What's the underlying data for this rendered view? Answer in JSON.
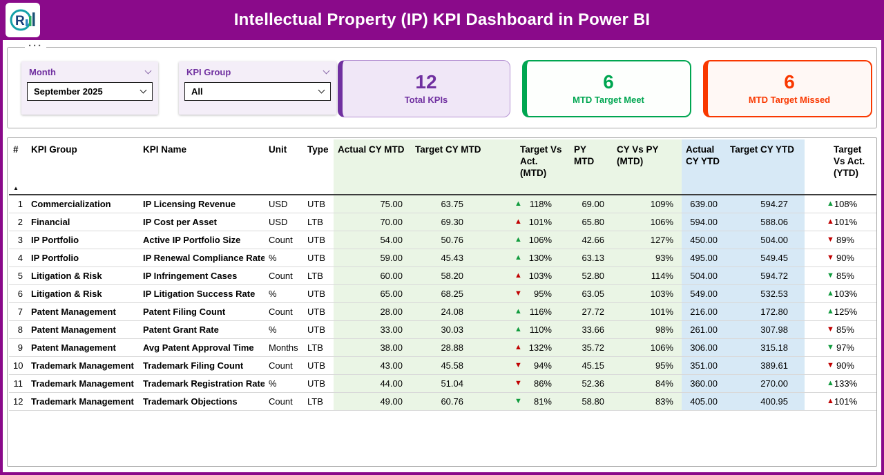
{
  "colors": {
    "header_purple": "#8a0a8a",
    "accent_purple": "#7030a0",
    "green": "#00a651",
    "red": "#f93800",
    "triangle_green": "#109b3d",
    "triangle_red": "#c00000",
    "mtd_col_bg": "#eaf5e5",
    "ytd_col_bg": "#d7e9f6",
    "card_purple_bg": "#f0e7f7",
    "slicer_bg": "#f4eef8"
  },
  "icons": {
    "more_options": "···",
    "sort_ascending": "▲",
    "triangle_up": "▲",
    "triangle_down": "▼"
  },
  "header": {
    "title": "Intellectual Property (IP) KPI Dashboard in Power BI",
    "logo_letter": "R"
  },
  "filters": {
    "month": {
      "label": "Month",
      "value": "September 2025"
    },
    "kpi_group": {
      "label": "KPI Group",
      "value": "All"
    }
  },
  "cards": [
    {
      "value": "12",
      "label": "Total KPIs"
    },
    {
      "value": "6",
      "label": "MTD Target Meet"
    },
    {
      "value": "6",
      "label": "MTD Target Missed"
    }
  ],
  "table": {
    "columns": [
      "#",
      "KPI Group",
      "KPI Name",
      "Unit",
      "Type",
      "Actual CY MTD",
      "Target CY MTD",
      "Target Vs Act. (MTD)",
      "PY MTD",
      "CY Vs PY (MTD)",
      "Actual CY YTD",
      "Target CY YTD",
      "Target Vs Act. (YTD)"
    ],
    "rows": [
      {
        "num": "1",
        "group": "Commercialization",
        "name": "IP Licensing Revenue",
        "unit": "USD",
        "type": "UTB",
        "actual_mtd": "75.00",
        "target_mtd": "63.75",
        "mtd": {
          "dir": "up",
          "color": "green",
          "pct": "118%"
        },
        "py_mtd": "69.00",
        "cy_vs_py": "109%",
        "actual_ytd": "639.00",
        "target_ytd": "594.27",
        "ytd": {
          "dir": "up",
          "color": "green",
          "pct": "108%"
        }
      },
      {
        "num": "2",
        "group": "Financial",
        "name": "IP Cost per Asset",
        "unit": "USD",
        "type": "LTB",
        "actual_mtd": "70.00",
        "target_mtd": "69.30",
        "mtd": {
          "dir": "up",
          "color": "red",
          "pct": "101%"
        },
        "py_mtd": "65.80",
        "cy_vs_py": "106%",
        "actual_ytd": "594.00",
        "target_ytd": "588.06",
        "ytd": {
          "dir": "up",
          "color": "red",
          "pct": "101%"
        }
      },
      {
        "num": "3",
        "group": "IP Portfolio",
        "name": "Active IP Portfolio Size",
        "unit": "Count",
        "type": "UTB",
        "actual_mtd": "54.00",
        "target_mtd": "50.76",
        "mtd": {
          "dir": "up",
          "color": "green",
          "pct": "106%"
        },
        "py_mtd": "42.66",
        "cy_vs_py": "127%",
        "actual_ytd": "450.00",
        "target_ytd": "504.00",
        "ytd": {
          "dir": "down",
          "color": "red",
          "pct": "89%"
        }
      },
      {
        "num": "4",
        "group": "IP Portfolio",
        "name": "IP Renewal Compliance Rate",
        "unit": "%",
        "type": "UTB",
        "actual_mtd": "59.00",
        "target_mtd": "45.43",
        "mtd": {
          "dir": "up",
          "color": "green",
          "pct": "130%"
        },
        "py_mtd": "63.13",
        "cy_vs_py": "93%",
        "actual_ytd": "495.00",
        "target_ytd": "549.45",
        "ytd": {
          "dir": "down",
          "color": "red",
          "pct": "90%"
        }
      },
      {
        "num": "5",
        "group": "Litigation & Risk",
        "name": "IP Infringement Cases",
        "unit": "Count",
        "type": "LTB",
        "actual_mtd": "60.00",
        "target_mtd": "58.20",
        "mtd": {
          "dir": "up",
          "color": "red",
          "pct": "103%"
        },
        "py_mtd": "52.80",
        "cy_vs_py": "114%",
        "actual_ytd": "504.00",
        "target_ytd": "594.72",
        "ytd": {
          "dir": "down",
          "color": "green",
          "pct": "85%"
        }
      },
      {
        "num": "6",
        "group": "Litigation & Risk",
        "name": "IP Litigation Success Rate",
        "unit": "%",
        "type": "UTB",
        "actual_mtd": "65.00",
        "target_mtd": "68.25",
        "mtd": {
          "dir": "down",
          "color": "red",
          "pct": "95%"
        },
        "py_mtd": "63.05",
        "cy_vs_py": "103%",
        "actual_ytd": "549.00",
        "target_ytd": "532.53",
        "ytd": {
          "dir": "up",
          "color": "green",
          "pct": "103%"
        }
      },
      {
        "num": "7",
        "group": "Patent Management",
        "name": "Patent Filing Count",
        "unit": "Count",
        "type": "UTB",
        "actual_mtd": "28.00",
        "target_mtd": "24.08",
        "mtd": {
          "dir": "up",
          "color": "green",
          "pct": "116%"
        },
        "py_mtd": "27.72",
        "cy_vs_py": "101%",
        "actual_ytd": "216.00",
        "target_ytd": "172.80",
        "ytd": {
          "dir": "up",
          "color": "green",
          "pct": "125%"
        }
      },
      {
        "num": "8",
        "group": "Patent Management",
        "name": "Patent Grant Rate",
        "unit": "%",
        "type": "UTB",
        "actual_mtd": "33.00",
        "target_mtd": "30.03",
        "mtd": {
          "dir": "up",
          "color": "green",
          "pct": "110%"
        },
        "py_mtd": "33.66",
        "cy_vs_py": "98%",
        "actual_ytd": "261.00",
        "target_ytd": "307.98",
        "ytd": {
          "dir": "down",
          "color": "red",
          "pct": "85%"
        }
      },
      {
        "num": "9",
        "group": "Patent Management",
        "name": "Avg Patent Approval Time",
        "unit": "Months",
        "type": "LTB",
        "actual_mtd": "38.00",
        "target_mtd": "28.88",
        "mtd": {
          "dir": "up",
          "color": "red",
          "pct": "132%"
        },
        "py_mtd": "35.72",
        "cy_vs_py": "106%",
        "actual_ytd": "306.00",
        "target_ytd": "315.18",
        "ytd": {
          "dir": "down",
          "color": "green",
          "pct": "97%"
        }
      },
      {
        "num": "10",
        "group": "Trademark Management",
        "name": "Trademark Filing Count",
        "unit": "Count",
        "type": "UTB",
        "actual_mtd": "43.00",
        "target_mtd": "45.58",
        "mtd": {
          "dir": "down",
          "color": "red",
          "pct": "94%"
        },
        "py_mtd": "45.15",
        "cy_vs_py": "95%",
        "actual_ytd": "351.00",
        "target_ytd": "389.61",
        "ytd": {
          "dir": "down",
          "color": "red",
          "pct": "90%"
        }
      },
      {
        "num": "11",
        "group": "Trademark Management",
        "name": "Trademark Registration Rate",
        "unit": "%",
        "type": "UTB",
        "actual_mtd": "44.00",
        "target_mtd": "51.04",
        "mtd": {
          "dir": "down",
          "color": "red",
          "pct": "86%"
        },
        "py_mtd": "52.36",
        "cy_vs_py": "84%",
        "actual_ytd": "360.00",
        "target_ytd": "270.00",
        "ytd": {
          "dir": "up",
          "color": "green",
          "pct": "133%"
        }
      },
      {
        "num": "12",
        "group": "Trademark Management",
        "name": "Trademark Objections",
        "unit": "Count",
        "type": "LTB",
        "actual_mtd": "49.00",
        "target_mtd": "60.76",
        "mtd": {
          "dir": "down",
          "color": "green",
          "pct": "81%"
        },
        "py_mtd": "58.80",
        "cy_vs_py": "83%",
        "actual_ytd": "405.00",
        "target_ytd": "400.95",
        "ytd": {
          "dir": "up",
          "color": "red",
          "pct": "101%"
        }
      }
    ]
  }
}
